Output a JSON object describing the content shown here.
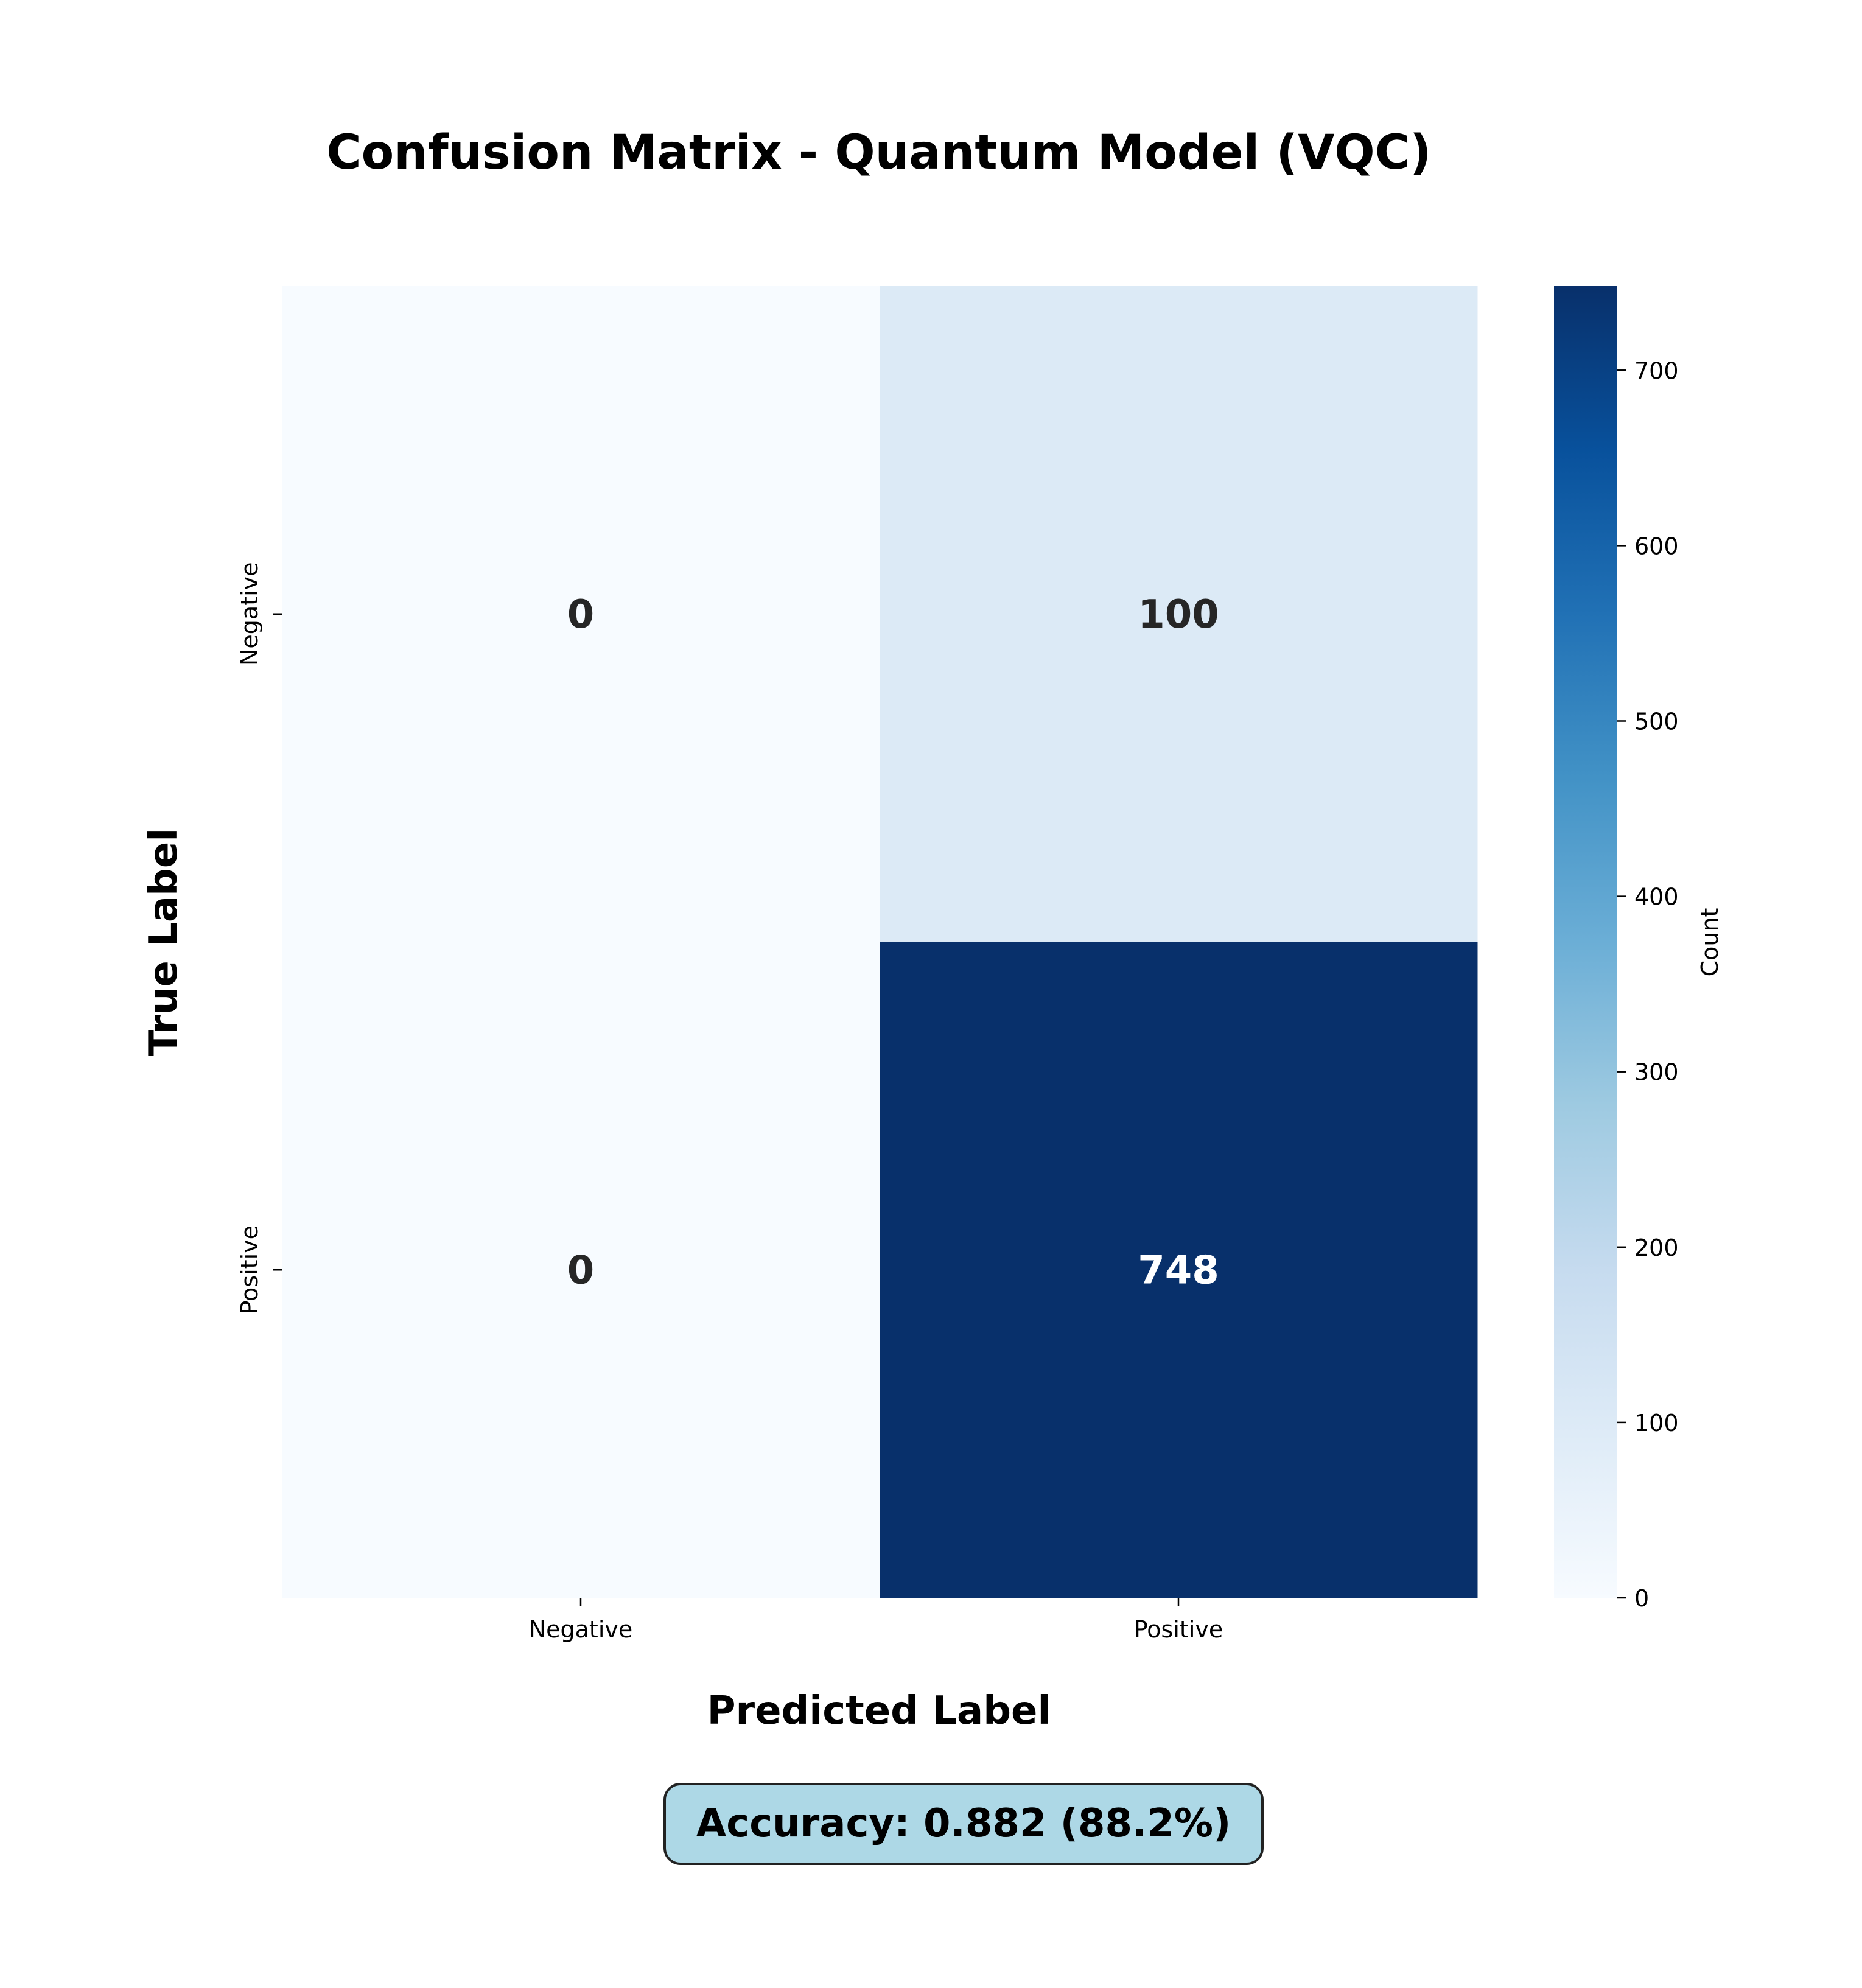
{
  "chart_data": {
    "type": "heatmap",
    "title": "Confusion Matrix - Quantum Model (VQC)",
    "xlabel": "Predicted Label",
    "ylabel": "True Label",
    "x_categories": [
      "Negative",
      "Positive"
    ],
    "y_categories": [
      "Negative",
      "Positive"
    ],
    "matrix": [
      [
        0,
        100
      ],
      [
        0,
        748
      ]
    ],
    "colormap": "Blues",
    "colorbar": {
      "label": "Count",
      "range": [
        0,
        748
      ],
      "ticks": [
        0,
        100,
        200,
        300,
        400,
        500,
        600,
        700
      ]
    },
    "annotation": "Accuracy: 0.882 (88.2%)",
    "colors": {
      "min": "#f7fbff",
      "max": "#08306b",
      "annotation_bg": "#add8e6",
      "dark_text": "#262626",
      "light_text": "#ffffff"
    }
  }
}
